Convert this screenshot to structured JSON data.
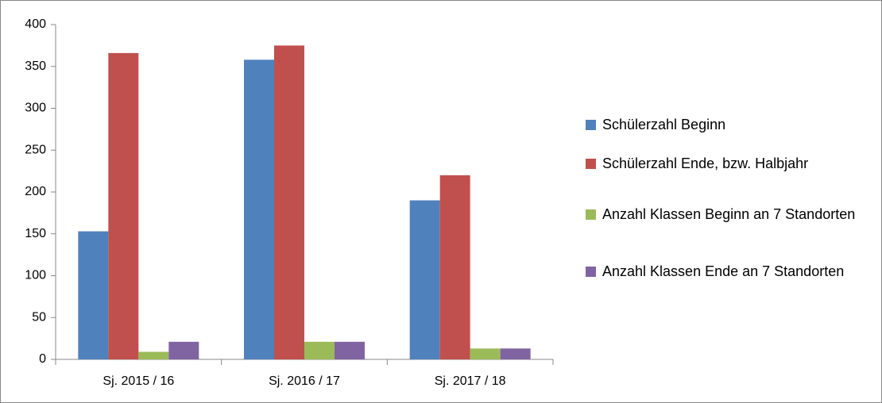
{
  "chart_data": {
    "type": "bar",
    "categories": [
      "Sj. 2015 / 16",
      "Sj. 2016 / 17",
      "Sj. 2017 / 18"
    ],
    "series": [
      {
        "name": "Schülerzahl Beginn",
        "color": "#4f81bd",
        "values": [
          153,
          358,
          190
        ]
      },
      {
        "name": "Schülerzahl Ende, bzw. Halbjahr",
        "color": "#c0504d",
        "values": [
          366,
          375,
          220
        ]
      },
      {
        "name": "Anzahl Klassen Beginn an 7 Standorten",
        "color": "#9bbb59",
        "values": [
          9,
          21,
          13
        ]
      },
      {
        "name": "Anzahl Klassen Ende an 7 Standorten",
        "color": "#8064a2",
        "values": [
          21,
          21,
          13
        ]
      }
    ],
    "ylim": [
      0,
      400
    ],
    "yticks": [
      0,
      50,
      100,
      150,
      200,
      250,
      300,
      350,
      400
    ],
    "grid": false,
    "legend": "right"
  }
}
